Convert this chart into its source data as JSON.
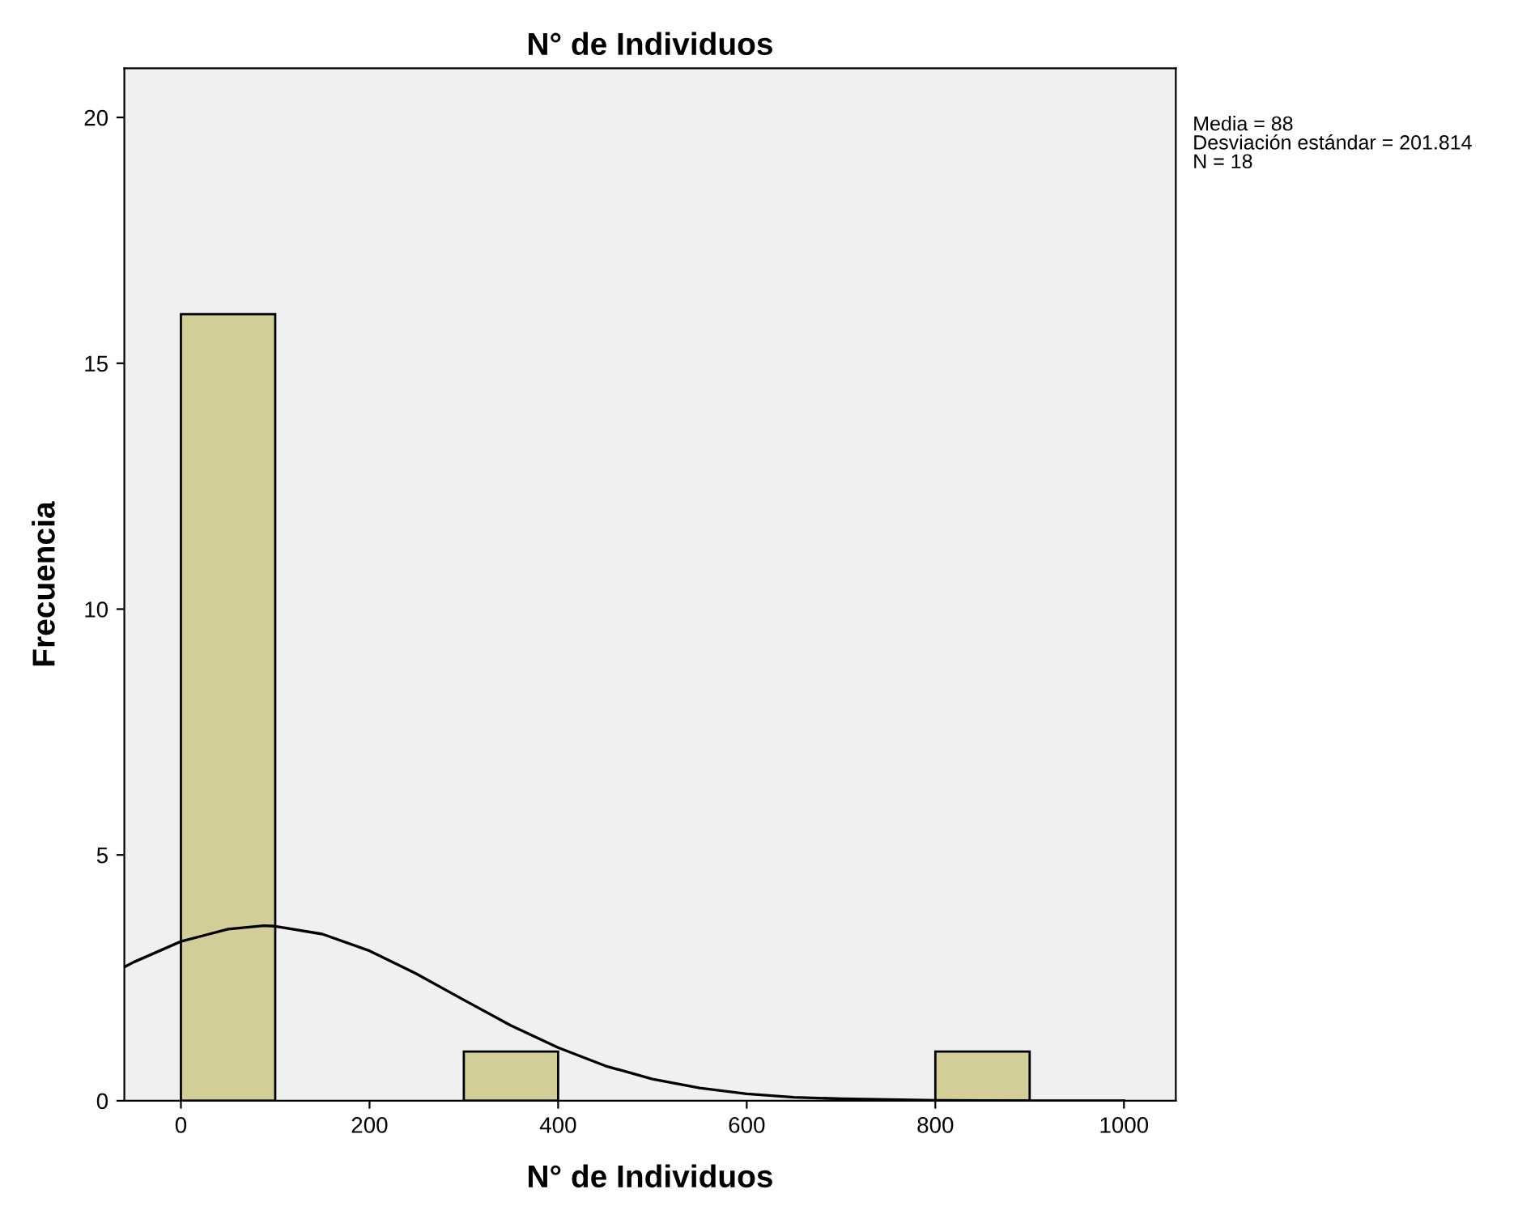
{
  "chart_data": {
    "type": "histogram",
    "title": "N° de Individuos",
    "xlabel": "N° de Individuos",
    "ylabel": "Frecuencia",
    "bins": [
      0,
      100,
      200,
      300,
      400,
      500,
      600,
      700,
      800,
      900
    ],
    "values": [
      16,
      0,
      0,
      1,
      0,
      0,
      0,
      0,
      1
    ],
    "color": "#d3ce97",
    "series": [
      {
        "type": "line",
        "color": "#000000",
        "x": [
          -60,
          -50,
          0,
          50,
          88,
          100,
          150,
          200,
          250,
          300,
          350,
          400,
          450,
          500,
          550,
          600,
          650,
          700,
          800,
          900,
          1000
        ],
        "values": [
          2.72,
          2.82,
          3.24,
          3.49,
          3.56,
          3.55,
          3.39,
          3.05,
          2.58,
          2.05,
          1.53,
          1.08,
          0.71,
          0.44,
          0.26,
          0.14,
          0.07,
          0.04,
          0.01,
          0,
          0
        ]
      }
    ],
    "xlim": [
      -60,
      1055
    ],
    "ylim": [
      0,
      21
    ],
    "xticks": [
      0,
      200,
      400,
      600,
      800,
      1000
    ],
    "yticks": [
      0,
      5,
      10,
      15,
      20
    ],
    "grid": false,
    "annotations": [
      "Media = 88",
      "Desviación estándar = 201.814",
      "N = 18"
    ]
  }
}
